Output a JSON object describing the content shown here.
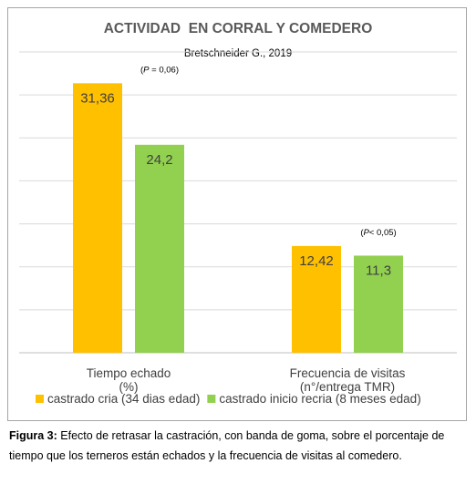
{
  "chart_data": {
    "type": "bar",
    "title": "ACTIVIDAD  EN CORRAL Y COMEDERO",
    "subtitle": "Bretschneider G., 2019",
    "categories": [
      [
        "Tiempo echado",
        "(%)"
      ],
      [
        "Frecuencia de visitas",
        "(n°/entrega TMR)"
      ]
    ],
    "series": [
      {
        "name": "castrado cria (34 dias edad)",
        "color": "#ffc000",
        "values": [
          31.36,
          12.42
        ],
        "labels": [
          "31,36",
          "12,42"
        ]
      },
      {
        "name": "castrado inicio recria (8 meses edad)",
        "color": "#92d050",
        "values": [
          24.2,
          11.3
        ],
        "labels": [
          "24,2",
          "11,3"
        ]
      }
    ],
    "annotations": [
      {
        "category": 0,
        "prefix": "P",
        "text": " = 0,06"
      },
      {
        "category": 1,
        "prefix": "P",
        "text": "< 0,05"
      }
    ],
    "ylim": [
      0,
      35
    ],
    "grid": true,
    "legend": "bottom"
  },
  "caption": {
    "label": "Figura 3:",
    "text": " Efecto de retrasar la castración, con banda de goma, sobre el porcentaje de tiempo que los terneros están echados y la frecuencia de visitas al comedero."
  }
}
